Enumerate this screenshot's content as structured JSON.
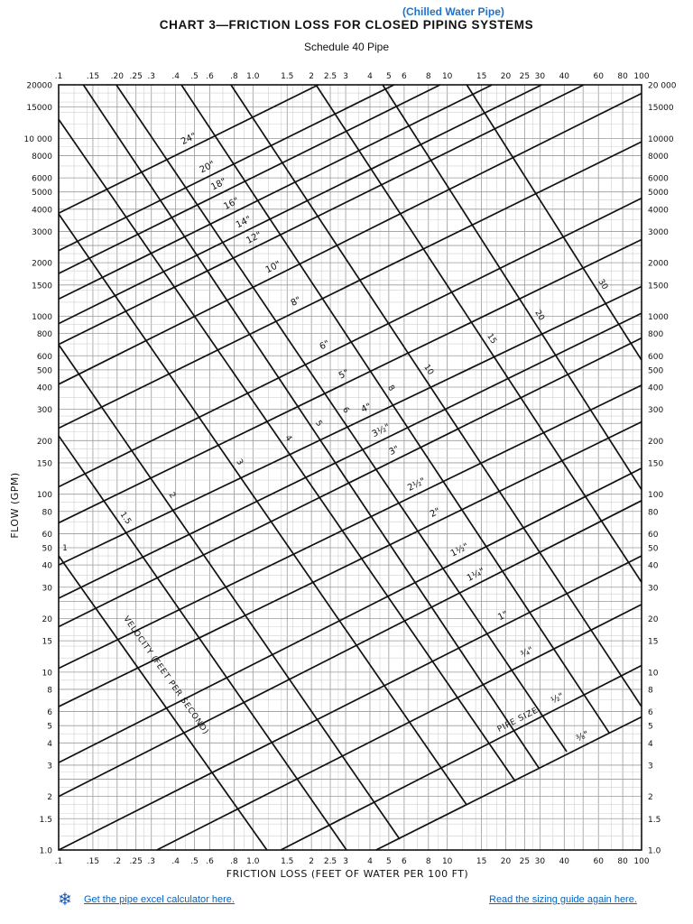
{
  "header": {
    "note": "(Chilled Water Pipe)",
    "title": "CHART 3—FRICTION LOSS FOR CLOSED PIPING SYSTEMS",
    "subtitle": "Schedule 40 Pipe"
  },
  "chart_data": {
    "type": "line",
    "title": "CHART 3—FRICTION LOSS FOR CLOSED PIPING SYSTEMS",
    "subtitle": "Schedule 40 Pipe",
    "xlabel": "FRICTION LOSS (FEET OF WATER PER 100 FT)",
    "ylabel": "FLOW (GPM)",
    "x_scale": "log",
    "y_scale": "log",
    "xlim": [
      0.1,
      100
    ],
    "ylim": [
      1,
      20000
    ],
    "grid": true,
    "pipe_size_label": "PIPE SIZE",
    "velocity_label": "VELOCITY (FEET PER SECOND)",
    "x_ticks_top": [
      {
        "label": ".1",
        "value": 0.1
      },
      {
        "label": ".15",
        "value": 0.15
      },
      {
        "label": ".20",
        "value": 0.2
      },
      {
        "label": ".25",
        "value": 0.25
      },
      {
        "label": ".3",
        "value": 0.3
      },
      {
        "label": ".4",
        "value": 0.4
      },
      {
        "label": ".5",
        "value": 0.5
      },
      {
        "label": ".6",
        "value": 0.6
      },
      {
        "label": ".8",
        "value": 0.8
      },
      {
        "label": "1.0",
        "value": 1
      },
      {
        "label": "1.5",
        "value": 1.5
      },
      {
        "label": "2",
        "value": 2
      },
      {
        "label": "2.5",
        "value": 2.5
      },
      {
        "label": "3",
        "value": 3
      },
      {
        "label": "4",
        "value": 4
      },
      {
        "label": "5",
        "value": 5
      },
      {
        "label": "6",
        "value": 6
      },
      {
        "label": "8",
        "value": 8
      },
      {
        "label": "10",
        "value": 10
      },
      {
        "label": "15",
        "value": 15
      },
      {
        "label": "20",
        "value": 20
      },
      {
        "label": "25",
        "value": 25
      },
      {
        "label": "30",
        "value": 30
      },
      {
        "label": "40",
        "value": 40
      },
      {
        "label": "60",
        "value": 60
      },
      {
        "label": "80",
        "value": 80
      },
      {
        "label": "100",
        "value": 100
      }
    ],
    "x_ticks_bottom": [
      {
        "label": ".1",
        "value": 0.1
      },
      {
        "label": ".15",
        "value": 0.15
      },
      {
        "label": ".2",
        "value": 0.2
      },
      {
        "label": ".25",
        "value": 0.25
      },
      {
        "label": ".3",
        "value": 0.3
      },
      {
        "label": ".4",
        "value": 0.4
      },
      {
        "label": ".5",
        "value": 0.5
      },
      {
        "label": ".6",
        "value": 0.6
      },
      {
        "label": ".8",
        "value": 0.8
      },
      {
        "label": "1.0",
        "value": 1
      },
      {
        "label": "1.5",
        "value": 1.5
      },
      {
        "label": "2",
        "value": 2
      },
      {
        "label": "2.5",
        "value": 2.5
      },
      {
        "label": "3",
        "value": 3
      },
      {
        "label": "4",
        "value": 4
      },
      {
        "label": "5",
        "value": 5
      },
      {
        "label": "6",
        "value": 6
      },
      {
        "label": "8",
        "value": 8
      },
      {
        "label": "10",
        "value": 10
      },
      {
        "label": "15",
        "value": 15
      },
      {
        "label": "20",
        "value": 20
      },
      {
        "label": "25",
        "value": 25
      },
      {
        "label": "30",
        "value": 30
      },
      {
        "label": "40",
        "value": 40
      },
      {
        "label": "60",
        "value": 60
      },
      {
        "label": "80",
        "value": 80
      },
      {
        "label": "100",
        "value": 100
      }
    ],
    "y_ticks_left": [
      {
        "label": "20000",
        "value": 20000
      },
      {
        "label": "15000",
        "value": 15000
      },
      {
        "label": "10 000",
        "value": 10000
      },
      {
        "label": "8000",
        "value": 8000
      },
      {
        "label": "6000",
        "value": 6000
      },
      {
        "label": "5000",
        "value": 5000
      },
      {
        "label": "4000",
        "value": 4000
      },
      {
        "label": "3000",
        "value": 3000
      },
      {
        "label": "2000",
        "value": 2000
      },
      {
        "label": "1500",
        "value": 1500
      },
      {
        "label": "1000",
        "value": 1000
      },
      {
        "label": "800",
        "value": 800
      },
      {
        "label": "600",
        "value": 600
      },
      {
        "label": "500",
        "value": 500
      },
      {
        "label": "400",
        "value": 400
      },
      {
        "label": "300",
        "value": 300
      },
      {
        "label": "200",
        "value": 200
      },
      {
        "label": "150",
        "value": 150
      },
      {
        "label": "100",
        "value": 100
      },
      {
        "label": "80",
        "value": 80
      },
      {
        "label": "60",
        "value": 60
      },
      {
        "label": "50",
        "value": 50
      },
      {
        "label": "40",
        "value": 40
      },
      {
        "label": "30",
        "value": 30
      },
      {
        "label": "20",
        "value": 20
      },
      {
        "label": "15",
        "value": 15
      },
      {
        "label": "10",
        "value": 10
      },
      {
        "label": "8",
        "value": 8
      },
      {
        "label": "6",
        "value": 6
      },
      {
        "label": "5",
        "value": 5
      },
      {
        "label": "4",
        "value": 4
      },
      {
        "label": "3",
        "value": 3
      },
      {
        "label": "2",
        "value": 2
      },
      {
        "label": "1.5",
        "value": 1.5
      },
      {
        "label": "1.0",
        "value": 1
      }
    ],
    "y_ticks_right": [
      {
        "label": "20 000",
        "value": 20000
      },
      {
        "label": "15000",
        "value": 15000
      },
      {
        "label": "10000",
        "value": 10000
      },
      {
        "label": "8000",
        "value": 8000
      },
      {
        "label": "6000",
        "value": 6000
      },
      {
        "label": "5000",
        "value": 5000
      },
      {
        "label": "4000",
        "value": 4000
      },
      {
        "label": "3000",
        "value": 3000
      },
      {
        "label": "2000",
        "value": 2000
      },
      {
        "label": "1500",
        "value": 1500
      },
      {
        "label": "1000",
        "value": 1000
      },
      {
        "label": "800",
        "value": 800
      },
      {
        "label": "600",
        "value": 600
      },
      {
        "label": "500",
        "value": 500
      },
      {
        "label": "400",
        "value": 400
      },
      {
        "label": "300",
        "value": 300
      },
      {
        "label": "200",
        "value": 200
      },
      {
        "label": "150",
        "value": 150
      },
      {
        "label": "100",
        "value": 100
      },
      {
        "label": "80",
        "value": 80
      },
      {
        "label": "60",
        "value": 60
      },
      {
        "label": "50",
        "value": 50
      },
      {
        "label": "40",
        "value": 40
      },
      {
        "label": "30",
        "value": 30
      },
      {
        "label": "20",
        "value": 20
      },
      {
        "label": "15",
        "value": 15
      },
      {
        "label": "10",
        "value": 10
      },
      {
        "label": "8",
        "value": 8
      },
      {
        "label": "6",
        "value": 6
      },
      {
        "label": "5",
        "value": 5
      },
      {
        "label": "4",
        "value": 4
      },
      {
        "label": "3",
        "value": 3
      },
      {
        "label": "2",
        "value": 2
      },
      {
        "label": "1.5",
        "value": 1.5
      },
      {
        "label": "1.0",
        "value": 1
      }
    ],
    "pipe_sizes": [
      {
        "label": "24\"",
        "points": [
          [
            0.1,
            3800
          ],
          [
            2.17,
            20000
          ]
        ]
      },
      {
        "label": "20\"",
        "points": [
          [
            0.1,
            2340
          ],
          [
            5.32,
            20000
          ]
        ]
      },
      {
        "label": "18\"",
        "points": [
          [
            0.1,
            1740
          ],
          [
            9.19,
            20000
          ]
        ]
      },
      {
        "label": "16\"",
        "points": [
          [
            0.1,
            1250
          ],
          [
            17.0,
            20000
          ]
        ]
      },
      {
        "label": "14\"",
        "points": [
          [
            0.1,
            910
          ],
          [
            30.6,
            20000
          ]
        ]
      },
      {
        "label": "12\"",
        "points": [
          [
            0.1,
            695
          ],
          [
            50.4,
            20000
          ]
        ]
      },
      {
        "label": "10\"",
        "points": [
          [
            0.1,
            415
          ],
          [
            100,
            17900
          ]
        ]
      },
      {
        "label": "8\"",
        "points": [
          [
            0.1,
            235
          ],
          [
            100,
            9570
          ]
        ]
      },
      {
        "label": "6\"",
        "points": [
          [
            0.1,
            110
          ],
          [
            100,
            4610
          ]
        ]
      },
      {
        "label": "5\"",
        "points": [
          [
            0.1,
            69
          ],
          [
            100,
            2700
          ]
        ]
      },
      {
        "label": "4\"",
        "points": [
          [
            0.1,
            40
          ],
          [
            100,
            1470
          ]
        ]
      },
      {
        "label": "3½\"",
        "points": [
          [
            0.1,
            26
          ],
          [
            100,
            1040
          ]
        ]
      },
      {
        "label": "3\"",
        "points": [
          [
            0.1,
            18
          ],
          [
            100,
            755
          ]
        ]
      },
      {
        "label": "2½\"",
        "points": [
          [
            0.1,
            10.5
          ],
          [
            100,
            410
          ]
        ]
      },
      {
        "label": "2\"",
        "points": [
          [
            0.1,
            6.4
          ],
          [
            100,
            255
          ]
        ]
      },
      {
        "label": "1½\"",
        "points": [
          [
            0.1,
            3.1
          ],
          [
            100,
            140
          ]
        ]
      },
      {
        "label": "1¼\"",
        "points": [
          [
            0.1,
            2.0
          ],
          [
            100,
            92
          ]
        ]
      },
      {
        "label": "1\"",
        "points": [
          [
            0.1,
            1.0
          ],
          [
            100,
            45
          ]
        ]
      },
      {
        "label": "¾\"",
        "points": [
          [
            0.32,
            1
          ],
          [
            100,
            24
          ]
        ]
      },
      {
        "label": "½\"",
        "points": [
          [
            1.39,
            1
          ],
          [
            100,
            10.9
          ]
        ]
      },
      {
        "label": "⅜\"",
        "points": [
          [
            4.3,
            1
          ],
          [
            100,
            5.6
          ]
        ]
      }
    ],
    "velocity_lines": [
      {
        "label": "1",
        "points": [
          [
            0.1,
            45
          ],
          [
            1.18,
            1
          ]
        ]
      },
      {
        "label": "1.5",
        "points": [
          [
            0.1,
            213
          ],
          [
            3.03,
            1
          ]
        ]
      },
      {
        "label": "2",
        "points": [
          [
            0.1,
            692
          ],
          [
            5.69,
            1.15
          ]
        ]
      },
      {
        "label": "3",
        "points": [
          [
            0.1,
            3760
          ],
          [
            12.6,
            1.79
          ]
        ]
      },
      {
        "label": "4",
        "points": [
          [
            0.1,
            12800
          ],
          [
            22.4,
            2.43
          ]
        ]
      },
      {
        "label": "5",
        "points": [
          [
            0.134,
            20000
          ],
          [
            29.6,
            2.89
          ]
        ]
      },
      {
        "label": "6",
        "points": [
          [
            0.198,
            20000
          ],
          [
            41.2,
            3.57
          ]
        ]
      },
      {
        "label": "8",
        "points": [
          [
            0.428,
            20000
          ],
          [
            68.1,
            4.56
          ]
        ]
      },
      {
        "label": "10",
        "points": [
          [
            0.77,
            20000
          ],
          [
            100,
            6.4
          ]
        ]
      },
      {
        "label": "15",
        "points": [
          [
            2.11,
            20000
          ],
          [
            100,
            32
          ]
        ]
      },
      {
        "label": "20",
        "points": [
          [
            4.65,
            20000
          ],
          [
            100,
            106
          ]
        ]
      },
      {
        "label": "30",
        "points": [
          [
            12.6,
            20000
          ],
          [
            100,
            567
          ]
        ]
      }
    ]
  },
  "links": {
    "calculator_icon": "snowflake-gear-icon",
    "calculator": "Get the pipe excel calculator here.",
    "guide": "Read the sizing guide again here.",
    "color": "#0563C1"
  }
}
